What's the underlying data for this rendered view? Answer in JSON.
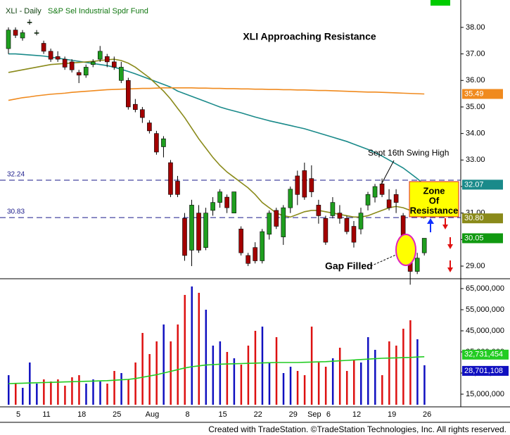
{
  "header": {
    "symbol": "XLI - Daily",
    "description": "S&P Sel Industrial Spdr Fund"
  },
  "footer": "Created with TradeStation. ©TradeStation Technologies, Inc. All rights reserved.",
  "chart_data": [
    {
      "type": "candlestick",
      "title": "XLI Approaching Resistance",
      "annotations": [
        "Sept 16th Swing High",
        "Gap Filled"
      ],
      "zone_label": [
        "Zone",
        "Of",
        "Resistance"
      ],
      "ylim": [
        28.55,
        38.9
      ],
      "yticks": [
        {
          "value": 29,
          "label": "29.00"
        },
        {
          "value": 30,
          "label": "30.00"
        },
        {
          "value": 31,
          "label": "31.00"
        },
        {
          "value": 32,
          "label": "32.00"
        },
        {
          "value": 33,
          "label": "33.00"
        },
        {
          "value": 34,
          "label": "34.00"
        },
        {
          "value": 35,
          "label": "35.00"
        },
        {
          "value": 36,
          "label": "36.00"
        },
        {
          "value": 37,
          "label": "37.00"
        },
        {
          "value": 38,
          "label": "38.00"
        }
      ],
      "hlines": [
        32.24,
        30.83
      ],
      "color_up": "#1f9e1f",
      "color_down": "#a30000",
      "last_color": "#119911",
      "last_label": "30.05",
      "open": [
        37.2,
        37.9,
        37.6,
        38.2,
        37.8,
        37.4,
        37.1,
        36.9,
        36.8,
        36.7,
        36.3,
        36.2,
        36.6,
        36.8,
        36.9,
        36.7,
        36.0,
        36.0,
        35.1,
        34.9,
        34.4,
        34.0,
        33.5,
        32.9,
        32.2,
        30.8,
        29.6,
        31.0,
        29.7,
        31.1,
        31.4,
        31.6,
        31.0,
        30.4,
        29.4,
        29.7,
        29.2,
        30.2,
        31.1,
        30.1,
        31.2,
        32.4,
        32.6,
        32.3,
        31.3,
        30.8,
        30.9,
        31.0,
        30.8,
        30.5,
        30.4,
        31.3,
        31.6,
        32.1,
        31.5,
        31.7,
        30.9,
        29.3,
        28.8,
        29.5
      ],
      "high": [
        38.0,
        38.0,
        37.9,
        38.3,
        37.9,
        37.5,
        37.2,
        37.1,
        36.9,
        36.8,
        36.4,
        36.6,
        36.8,
        37.3,
        37.0,
        36.9,
        36.7,
        36.1,
        35.3,
        35.0,
        34.5,
        34.1,
        33.9,
        33.0,
        32.4,
        31.0,
        31.5,
        31.3,
        31.2,
        31.6,
        31.9,
        31.7,
        31.8,
        30.5,
        29.5,
        29.9,
        30.4,
        31.1,
        31.2,
        31.3,
        32.0,
        32.6,
        32.9,
        32.8,
        31.5,
        30.9,
        31.6,
        31.3,
        30.9,
        30.7,
        31.2,
        31.8,
        32.1,
        32.3,
        31.9,
        31.9,
        31.0,
        29.3,
        29.5,
        30.0
      ],
      "low": [
        37.0,
        37.6,
        37.5,
        38.1,
        37.7,
        37.0,
        36.7,
        36.7,
        36.4,
        36.3,
        35.9,
        36.1,
        36.5,
        36.7,
        36.5,
        36.4,
        35.9,
        34.9,
        34.8,
        34.4,
        34.0,
        33.2,
        33.1,
        31.6,
        31.6,
        29.2,
        29.0,
        29.5,
        29.6,
        30.9,
        31.2,
        31.0,
        31.0,
        29.4,
        29.0,
        29.1,
        29.1,
        30.0,
        30.4,
        29.8,
        31.0,
        31.3,
        31.5,
        31.6,
        30.6,
        29.8,
        30.8,
        30.6,
        30.2,
        29.7,
        30.2,
        31.1,
        31.4,
        31.6,
        31.1,
        31.0,
        29.7,
        28.3,
        28.7,
        29.4
      ],
      "close": [
        37.9,
        37.7,
        37.8,
        38.2,
        37.8,
        37.1,
        36.8,
        36.8,
        36.5,
        36.4,
        36.2,
        36.5,
        36.7,
        37.1,
        36.7,
        36.5,
        36.5,
        35.0,
        34.9,
        34.6,
        34.1,
        33.3,
        33.8,
        31.7,
        31.7,
        29.4,
        31.3,
        29.6,
        31.0,
        31.4,
        31.8,
        31.2,
        31.8,
        29.5,
        29.1,
        29.2,
        30.3,
        31.0,
        30.5,
        31.2,
        31.9,
        31.7,
        31.6,
        31.8,
        30.9,
        29.9,
        31.4,
        30.8,
        30.3,
        29.9,
        31.0,
        31.7,
        32.0,
        31.7,
        31.2,
        31.4,
        29.8,
        28.8,
        29.3,
        30.05
      ],
      "lines": [
        {
          "color": "#1a8a8a",
          "last_label": "32.07",
          "values": [
            37.0,
            37.0,
            36.98,
            36.96,
            36.94,
            36.92,
            36.88,
            36.84,
            36.8,
            36.76,
            36.72,
            36.68,
            36.64,
            36.6,
            36.56,
            36.5,
            36.42,
            36.34,
            36.25,
            36.15,
            36.05,
            35.95,
            35.85,
            35.75,
            35.6,
            35.5,
            35.4,
            35.3,
            35.2,
            35.1,
            35.0,
            34.92,
            34.85,
            34.78,
            34.7,
            34.62,
            34.55,
            34.48,
            34.42,
            34.36,
            34.3,
            34.24,
            34.18,
            34.1,
            34.02,
            33.94,
            33.86,
            33.78,
            33.7,
            33.6,
            33.5,
            33.4,
            33.28,
            33.15,
            33.0,
            32.85,
            32.7,
            32.5,
            32.3,
            32.07
          ]
        },
        {
          "color": "#8a8a1a",
          "last_label": "30.80",
          "values": [
            36.3,
            36.35,
            36.4,
            36.45,
            36.5,
            36.55,
            36.6,
            36.62,
            36.64,
            36.66,
            36.68,
            36.7,
            36.72,
            36.75,
            36.78,
            36.8,
            36.75,
            36.65,
            36.5,
            36.3,
            36.1,
            35.85,
            35.6,
            35.3,
            34.95,
            34.6,
            34.2,
            33.8,
            33.45,
            33.1,
            32.8,
            32.55,
            32.35,
            32.15,
            31.95,
            31.7,
            31.4,
            31.2,
            31.0,
            30.9,
            30.85,
            30.95,
            31.05,
            31.1,
            31.1,
            31.05,
            31.0,
            30.95,
            30.9,
            30.85,
            30.85,
            30.9,
            31.0,
            31.1,
            31.2,
            31.25,
            31.2,
            31.1,
            30.95,
            30.8
          ]
        },
        {
          "color": "#f08a1e",
          "last_label": "35.49",
          "values": [
            35.25,
            35.3,
            35.35,
            35.38,
            35.42,
            35.45,
            35.48,
            35.5,
            35.52,
            35.55,
            35.57,
            35.59,
            35.61,
            35.63,
            35.65,
            35.66,
            35.67,
            35.68,
            35.69,
            35.7,
            35.7,
            35.71,
            35.72,
            35.72,
            35.72,
            35.72,
            35.72,
            35.71,
            35.71,
            35.7,
            35.7,
            35.69,
            35.69,
            35.68,
            35.68,
            35.67,
            35.67,
            35.66,
            35.66,
            35.65,
            35.65,
            35.64,
            35.64,
            35.63,
            35.62,
            35.62,
            35.61,
            35.6,
            35.59,
            35.58,
            35.57,
            35.56,
            35.56,
            35.55,
            35.54,
            35.53,
            35.52,
            35.51,
            35.5,
            35.49
          ]
        }
      ]
    },
    {
      "type": "bar",
      "categories": [
        null,
        "5",
        null,
        null,
        null,
        "11",
        null,
        null,
        null,
        null,
        "18",
        null,
        null,
        null,
        null,
        "25",
        null,
        null,
        null,
        null,
        "Aug",
        null,
        null,
        null,
        null,
        "8",
        null,
        null,
        null,
        null,
        "15",
        null,
        null,
        null,
        null,
        "22",
        null,
        null,
        null,
        null,
        "29",
        null,
        null,
        "Sep",
        null,
        "6",
        null,
        null,
        null,
        "12",
        null,
        null,
        null,
        null,
        "19",
        null,
        null,
        null,
        null,
        "26"
      ],
      "ylim": [
        10000000,
        69000000
      ],
      "yticks": [
        {
          "value": 15000000,
          "label": "15,000,000"
        },
        {
          "value": 25000000,
          "label": "25,000,000"
        },
        {
          "value": 35000000,
          "label": "35,000,000"
        },
        {
          "value": 45000000,
          "label": "45,000,000"
        },
        {
          "value": 55000000,
          "label": "55,000,000"
        },
        {
          "value": 65000000,
          "label": "65,000,000"
        }
      ],
      "color_up": "#1010c0",
      "color_down": "#dd1010",
      "last_color": "#1010c0",
      "last_label": "28,701,108",
      "values": [
        24000000.0,
        20000000.0,
        18000000.0,
        30000000.0,
        20000000.0,
        22000000.0,
        21000000.0,
        22000000.0,
        19000000.0,
        23000000.0,
        24000000.0,
        20000000.0,
        22000000.0,
        21000000.0,
        20000000.0,
        26000000.0,
        25000000.0,
        22000000.0,
        30000000.0,
        44000000.0,
        34000000.0,
        40000000.0,
        48000000.0,
        40000000.0,
        48000000.0,
        62000000.0,
        66000000.0,
        63000000.0,
        55000000.0,
        38000000.0,
        40000000.0,
        35000000.0,
        32000000.0,
        29000000.0,
        38000000.0,
        45000000.0,
        47000000.0,
        30000000.0,
        42000000.0,
        25000000.0,
        28000000.0,
        26000000.0,
        24000000.0,
        47000000.0,
        30000000.0,
        28000000.0,
        32000000.0,
        37000000.0,
        26000000.0,
        31000000.0,
        30000000.0,
        42000000.0,
        36000000.0,
        24000000.0,
        40000000.0,
        38000000.0,
        46000000.0,
        50000000.0,
        41000000.0,
        28701108
      ],
      "ma": {
        "color": "#22cc22",
        "last_label": "32,731,454",
        "values": [
          20000000.0,
          20100000.0,
          20200000.0,
          20300000.0,
          20400000.0,
          20500000.0,
          20600000.0,
          20700000.0,
          20800000.0,
          20900000.0,
          21000000.0,
          21100000.0,
          21200000.0,
          21300000.0,
          21400000.0,
          21600000.0,
          21800000.0,
          22000000.0,
          22400000.0,
          23000000.0,
          23600000.0,
          24200000.0,
          25000000.0,
          25800000.0,
          26600000.0,
          27400000.0,
          28000000.0,
          28400000.0,
          28800000.0,
          29000000.0,
          29200000.0,
          29300000.0,
          29400000.0,
          29500000.0,
          29600000.0,
          29700000.0,
          29800000.0,
          29900000.0,
          30000000.0,
          30000000.0,
          30000000.0,
          30000000.0,
          30100000.0,
          30200000.0,
          30300000.0,
          30400000.0,
          30600000.0,
          30800000.0,
          31000000.0,
          31200000.0,
          31400000.0,
          31600000.0,
          31800000.0,
          32000000.0,
          32100000.0,
          32200000.0,
          32300000.0,
          32400000.0,
          32600000.0,
          32731454
        ]
      }
    }
  ]
}
